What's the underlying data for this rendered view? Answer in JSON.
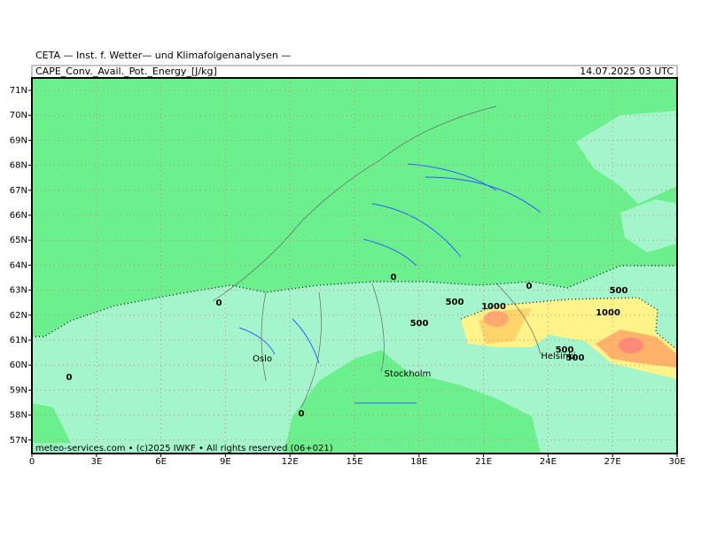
{
  "header": {
    "title": "CETA — Inst. f. Wetter— und Klimafolgenanalysen —",
    "field": "CAPE_Conv._Avail._Pot._Energy_[J/kg]",
    "time": "14.07.2025 03 UTC"
  },
  "lat_labels": [
    "71N",
    "70N",
    "69N",
    "68N",
    "67N",
    "66N",
    "65N",
    "64N",
    "63N",
    "62N",
    "61N",
    "60N",
    "59N",
    "58N",
    "57N"
  ],
  "lon_labels": [
    "0",
    "3E",
    "6E",
    "9E",
    "12E",
    "15E",
    "18E",
    "21E",
    "24E",
    "27E",
    "30E"
  ],
  "contour_labels": [
    "0",
    "0",
    "0",
    "0",
    "0",
    "500",
    "500",
    "500",
    "500",
    "500",
    "1000",
    "1000"
  ],
  "places": [
    "Oslo",
    "Stockholm",
    "Helsinki"
  ],
  "footer": "meteo-services.com • (c)2025 IWKF • All rights reserved (06+021)"
}
